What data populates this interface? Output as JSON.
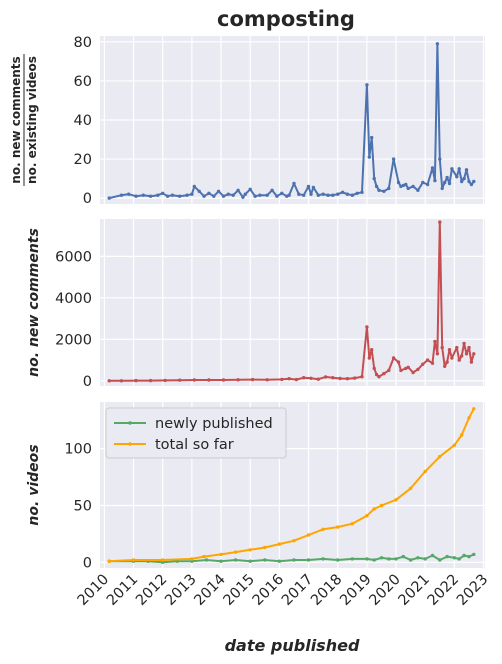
{
  "chart_data": [
    {
      "type": "line",
      "title": "composting",
      "ylabel_numerator": "no. new comments",
      "ylabel_denominator": "no. existing videos",
      "ylim": [
        -3,
        83
      ],
      "yticks": [
        0,
        20,
        40,
        60,
        80
      ],
      "grid": true,
      "series": [
        {
          "color": "#4c72b0",
          "x": [
            "2010-03",
            "2010-08",
            "2010-11",
            "2011-02",
            "2011-05",
            "2011-08",
            "2011-11",
            "2012-01",
            "2012-03",
            "2012-05",
            "2012-08",
            "2012-11",
            "2013-01",
            "2013-02",
            "2013-04",
            "2013-06",
            "2013-08",
            "2013-10",
            "2013-12",
            "2014-02",
            "2014-04",
            "2014-06",
            "2014-08",
            "2014-10",
            "2014-11",
            "2015-01",
            "2015-03",
            "2015-05",
            "2015-08",
            "2015-10",
            "2015-12",
            "2016-02",
            "2016-04",
            "2016-05",
            "2016-07",
            "2016-09",
            "2016-11",
            "2017-01",
            "2017-02",
            "2017-03",
            "2017-05",
            "2017-07",
            "2017-09",
            "2017-11",
            "2018-01",
            "2018-03",
            "2018-05",
            "2018-07",
            "2018-09",
            "2018-11",
            "2019-01",
            "2019-02",
            "2019-03",
            "2019-04",
            "2019-05",
            "2019-06",
            "2019-08",
            "2019-10",
            "2019-12",
            "2020-02",
            "2020-03",
            "2020-04",
            "2020-05",
            "2020-06",
            "2020-08",
            "2020-10",
            "2020-12",
            "2021-02",
            "2021-04",
            "2021-05",
            "2021-06",
            "2021-07",
            "2021-08",
            "2021-09",
            "2021-10",
            "2021-11",
            "2021-12",
            "2022-02",
            "2022-03",
            "2022-04",
            "2022-05",
            "2022-06",
            "2022-07",
            "2022-08",
            "2022-09"
          ],
          "values": [
            0,
            1.5,
            2,
            1,
            1.5,
            1,
            1.5,
            2.5,
            1,
            1.5,
            1,
            1.5,
            2,
            6,
            3.5,
            1,
            2.5,
            1,
            3.5,
            1,
            2,
            1.5,
            4,
            0.5,
            2,
            4.5,
            1,
            1.5,
            1.5,
            4,
            1,
            2.5,
            1,
            1.5,
            7.5,
            2,
            1.5,
            6,
            2,
            5.5,
            1.5,
            2,
            1.5,
            1.5,
            2,
            3,
            2,
            1.5,
            2.5,
            3,
            58,
            21,
            31,
            10,
            6,
            4,
            3.5,
            5,
            20,
            8,
            6,
            6.5,
            7,
            5,
            6,
            4,
            8,
            7,
            15.5,
            9,
            79,
            20,
            5,
            8,
            10.5,
            7.5,
            15,
            11,
            15,
            8.5,
            10,
            14.5,
            8.5,
            7,
            8.5
          ]
        }
      ]
    },
    {
      "type": "line",
      "ylabel": "no. new comments",
      "ylim": [
        -250,
        7800
      ],
      "yticks": [
        0,
        2000,
        4000,
        6000
      ],
      "grid": true,
      "series": [
        {
          "color": "#c44e52",
          "x": [
            "2010-03",
            "2010-08",
            "2011-02",
            "2011-08",
            "2012-02",
            "2012-08",
            "2013-02",
            "2013-08",
            "2014-02",
            "2014-08",
            "2015-02",
            "2015-08",
            "2016-02",
            "2016-05",
            "2016-08",
            "2016-11",
            "2017-02",
            "2017-05",
            "2017-08",
            "2017-11",
            "2018-02",
            "2018-05",
            "2018-08",
            "2018-11",
            "2019-01",
            "2019-02",
            "2019-03",
            "2019-04",
            "2019-05",
            "2019-06",
            "2019-08",
            "2019-10",
            "2019-12",
            "2020-02",
            "2020-03",
            "2020-05",
            "2020-06",
            "2020-08",
            "2020-10",
            "2020-12",
            "2021-02",
            "2021-04",
            "2021-05",
            "2021-06",
            "2021-07",
            "2021-08",
            "2021-09",
            "2021-10",
            "2021-11",
            "2021-12",
            "2022-02",
            "2022-03",
            "2022-04",
            "2022-05",
            "2022-06",
            "2022-07",
            "2022-08",
            "2022-09"
          ],
          "values": [
            0,
            0,
            10,
            10,
            20,
            30,
            40,
            40,
            40,
            50,
            60,
            50,
            70,
            100,
            60,
            150,
            120,
            80,
            190,
            150,
            110,
            100,
            130,
            200,
            2600,
            1100,
            1500,
            600,
            300,
            200,
            350,
            500,
            1100,
            900,
            500,
            600,
            650,
            400,
            550,
            800,
            1000,
            850,
            1900,
            1300,
            7650,
            1600,
            700,
            900,
            1500,
            1100,
            1600,
            1000,
            1200,
            1800,
            1300,
            1600,
            900,
            1300
          ]
        }
      ]
    },
    {
      "type": "line",
      "ylabel": "no. videos",
      "xlabel": "date published",
      "ylim": [
        -5,
        141
      ],
      "yticks": [
        0,
        50,
        100
      ],
      "xticks": [
        "2010",
        "2011",
        "2012",
        "2013",
        "2014",
        "2015",
        "2016",
        "2017",
        "2018",
        "2019",
        "2020",
        "2021",
        "2022",
        "2023"
      ],
      "grid": true,
      "legend": "top-left",
      "series": [
        {
          "name": "newly published",
          "color": "#55a868",
          "x": [
            "2010-03",
            "2011-01",
            "2011-07",
            "2012-01",
            "2012-07",
            "2013-01",
            "2013-07",
            "2014-01",
            "2014-07",
            "2015-01",
            "2015-07",
            "2016-01",
            "2016-07",
            "2017-01",
            "2017-07",
            "2018-01",
            "2018-07",
            "2019-01",
            "2019-04",
            "2019-07",
            "2019-10",
            "2020-01",
            "2020-04",
            "2020-07",
            "2020-10",
            "2021-01",
            "2021-04",
            "2021-07",
            "2021-10",
            "2022-01",
            "2022-03",
            "2022-05",
            "2022-07",
            "2022-09"
          ],
          "values": [
            1,
            1,
            1,
            0,
            1,
            1,
            2,
            1,
            2,
            1,
            2,
            1,
            2,
            2,
            3,
            2,
            3,
            3,
            2,
            4,
            3,
            3,
            5,
            2,
            4,
            3,
            6,
            2,
            5,
            4,
            3,
            6,
            5,
            7
          ]
        },
        {
          "name": "total so far",
          "color": "#ffa500",
          "x": [
            "2010-03",
            "2011-01",
            "2012-01",
            "2013-01",
            "2013-06",
            "2014-01",
            "2014-07",
            "2015-01",
            "2015-07",
            "2016-01",
            "2016-07",
            "2017-01",
            "2017-07",
            "2018-01",
            "2018-07",
            "2019-01",
            "2019-04",
            "2019-07",
            "2020-01",
            "2020-07",
            "2021-01",
            "2021-07",
            "2022-01",
            "2022-04",
            "2022-07",
            "2022-09"
          ],
          "values": [
            1,
            2,
            2,
            3,
            5,
            7,
            9,
            11,
            13,
            16,
            19,
            24,
            29,
            31,
            34,
            41,
            47,
            50,
            55,
            65,
            80,
            93,
            103,
            112,
            127,
            135
          ]
        }
      ]
    }
  ]
}
